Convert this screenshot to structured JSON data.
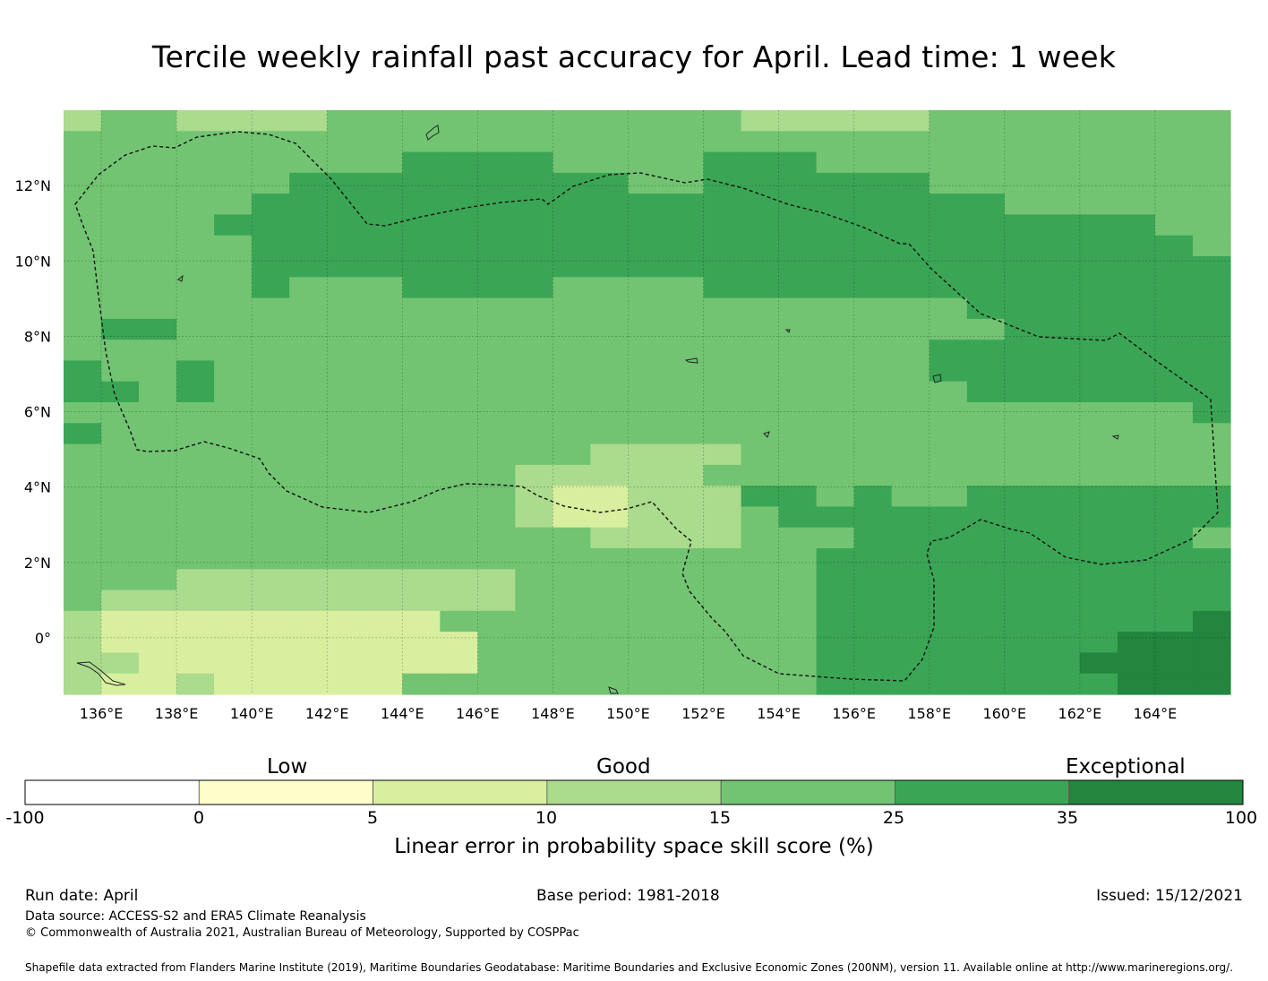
{
  "title": "Tercile weekly rainfall past accuracy for April. Lead time: 1 week",
  "map": {
    "lon_range": [
      135,
      166
    ],
    "lat_range": [
      -1.5,
      14
    ],
    "lon_ticks": [
      "136°E",
      "138°E",
      "140°E",
      "142°E",
      "144°E",
      "146°E",
      "148°E",
      "150°E",
      "152°E",
      "154°E",
      "156°E",
      "158°E",
      "160°E",
      "162°E",
      "164°E"
    ],
    "lat_ticks": [
      "12°N",
      "10°N",
      "8°N",
      "6°N",
      "4°N",
      "2°N",
      "0°"
    ],
    "lon_tick_values": [
      136,
      138,
      140,
      142,
      144,
      146,
      148,
      150,
      152,
      154,
      156,
      158,
      160,
      162,
      164
    ],
    "lat_tick_values": [
      12,
      10,
      8,
      6,
      4,
      2,
      0
    ],
    "grid": true,
    "cell_size_deg": 0.833,
    "levels": {
      "0": "#72c472",
      "1": "#3aa655",
      "2": "#abdb8c",
      "3": "#d9efa0",
      "4": "#f9f9c0",
      "5": "#23853e"
    },
    "skill_grid_rows_north_to_south": [
      "2002222000000000002222200000000",
      "0000000000000000000000000000000",
      "0000000001111000011100000000000",
      "0000001111111110011111100000000",
      "0000011111111111111111111000000",
      "0000111111111111111111111111100",
      "0000011111111111111111111111110",
      "0000011111111111111111111111111",
      "0000010001111000011111111111111",
      "0000000000000000000000001111111",
      "0110000000000000000000000111111",
      "0000000000000000000000011111111",
      "1001000000000000000000011111111",
      "1101000000000000000000001111111",
      "0000000000000000000000000000001",
      "1000000000000000000000000000000",
      "0000000000000022220000000000000",
      "0000000000002222200000000000000",
      "0000000000002332221101001111111",
      "0000000000002332220111111111111",
      "0000000000000022220001111111110",
      "0000000000000000000011111111111",
      "0002222222220000000011111111111",
      "0222222222220000000011111111111",
      "2333333333000000000011111111115",
      "2333333333300000000011111111555",
      "2233333333300000000011111115555",
      "2332333330000000000011111111555"
    ],
    "eez_label": "EEZ boundary"
  },
  "colorbar": {
    "categories": [
      "Low",
      "Good",
      "Exceptional"
    ],
    "ticks": [
      "-100",
      "0",
      "5",
      "10",
      "15",
      "25",
      "35",
      "100"
    ],
    "colors": [
      "#ffffff",
      "#fefecb",
      "#d9efa0",
      "#abdb8c",
      "#72c472",
      "#3aa655",
      "#23853e"
    ],
    "label": "Linear error in probability space skill score (%)"
  },
  "footer": {
    "run_date": "Run date: April",
    "base_period": "Base period: 1981-2018",
    "issued": "Issued: 15/12/2021",
    "data_source": "Data source: ACCESS-S2 and ERA5 Climate Reanalysis",
    "copyright": "© Commonwealth of Australia 2021, Australian Bureau of Meteorology, Supported by COSPPac",
    "shapefile": "Shapefile data extracted from Flanders Marine Institute (2019), Maritime Boundaries Geodatabase: Maritime Boundaries and Exclusive Economic Zones (200NM), version 11. Available online at http://www.marineregions.org/."
  }
}
